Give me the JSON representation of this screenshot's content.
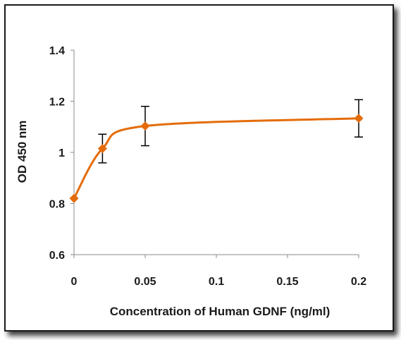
{
  "chart_data": {
    "type": "line",
    "xlabel": "Concentration of  Human GDNF (ng/ml)",
    "ylabel": "OD 450 nm",
    "xlim": [
      0,
      0.2
    ],
    "ylim": [
      0.6,
      1.4
    ],
    "x_ticks": [
      0,
      0.05,
      0.1,
      0.15,
      0.2
    ],
    "x_tick_labels": [
      "0",
      "0.05",
      "0.1",
      "0.15",
      "0.2"
    ],
    "y_ticks": [
      0.6,
      0.8,
      1,
      1.2,
      1.4
    ],
    "y_tick_labels": [
      "0.6",
      "0.8",
      "1",
      "1.2",
      "1.4"
    ],
    "grid": false,
    "smooth": true,
    "series": [
      {
        "color": "#E46C0A",
        "marker": "diamond",
        "x": [
          0,
          0.02,
          0.05,
          0.2
        ],
        "y": [
          0.82,
          1.015,
          1.103,
          1.133
        ],
        "error": [
          0,
          0.056,
          0.077,
          0.073
        ]
      }
    ]
  }
}
